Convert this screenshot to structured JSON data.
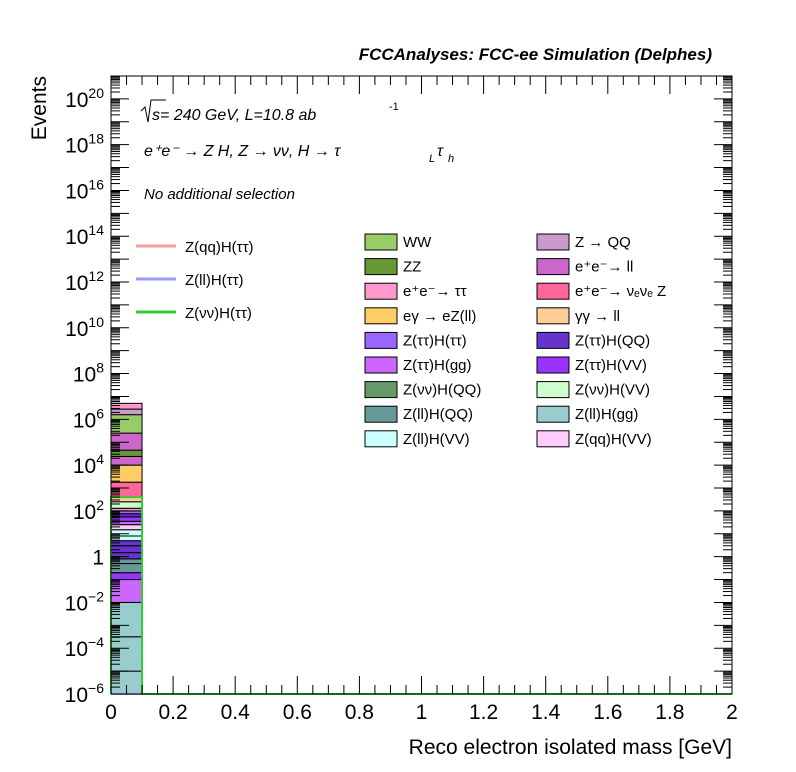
{
  "chart_data": {
    "type": "bar",
    "stacked": true,
    "log_y": true,
    "title": "FCCAnalyses: FCC-ee Simulation (Delphes)",
    "annotations": {
      "sqrt_s": "s",
      "energy_lumi": " = 240 GeV, L=10.8 ab",
      "lumi_exp": "-1",
      "process": "e⁺e⁻ → Z H, Z → νν, H → τ",
      "process_sub_L": "L",
      "process_tau": "τ",
      "process_sub_h": "h",
      "selection": "No additional selection"
    },
    "xlabel": "Reco electron isolated mass [GeV]",
    "ylabel": "Events",
    "xlim": [
      0,
      2
    ],
    "ylim": [
      1e-06,
      1e+21
    ],
    "x_ticks": [
      "0",
      "0.2",
      "0.4",
      "0.6",
      "0.8",
      "1",
      "1.2",
      "1.4",
      "1.6",
      "1.8",
      "2"
    ],
    "y_ticks": [
      {
        "value": 1e-06,
        "base": "10",
        "exp": "−6"
      },
      {
        "value": 0.0001,
        "base": "10",
        "exp": "−4"
      },
      {
        "value": 0.01,
        "base": "10",
        "exp": "−2"
      },
      {
        "value": 1,
        "base": "1",
        "exp": ""
      },
      {
        "value": 100.0,
        "base": "10",
        "exp": "2"
      },
      {
        "value": 10000.0,
        "base": "10",
        "exp": "4"
      },
      {
        "value": 1000000.0,
        "base": "10",
        "exp": "6"
      },
      {
        "value": 100000000.0,
        "base": "10",
        "exp": "8"
      },
      {
        "value": 10000000000.0,
        "base": "10",
        "exp": "10"
      },
      {
        "value": 1000000000000.0,
        "base": "10",
        "exp": "12"
      },
      {
        "value": 100000000000000.0,
        "base": "10",
        "exp": "14"
      },
      {
        "value": 1e+16,
        "base": "10",
        "exp": "16"
      },
      {
        "value": 1e+18,
        "base": "10",
        "exp": "18"
      },
      {
        "value": 1e+20,
        "base": "10",
        "exp": "20"
      }
    ],
    "bin": [
      0,
      0.1
    ],
    "signal_legend": [
      {
        "name": "Z(qq)H(ττ)",
        "color": "#f4a0a0"
      },
      {
        "name": "Z(ll)H(ττ)",
        "color": "#9999ff"
      },
      {
        "name": "Z(νν)H(ττ)",
        "color": "#33cc33"
      }
    ],
    "signal_line_top": 400,
    "background_legend": [
      {
        "name": "WW",
        "color": "#99cc66"
      },
      {
        "name": "Z → QQ",
        "color": "#cc99cc"
      },
      {
        "name": "ZZ",
        "color": "#669933"
      },
      {
        "name": "e⁺e⁻→ ll",
        "color": "#cc66cc"
      },
      {
        "name": "e⁺e⁻→ ττ",
        "color": "#ff99cc"
      },
      {
        "name": "e⁺e⁻→ νₑνₑ Z",
        "color": "#ff6699"
      },
      {
        "name": "eγ → eZ(ll)",
        "color": "#ffcc66"
      },
      {
        "name": "γγ → ll",
        "color": "#ffcc99"
      },
      {
        "name": "Z(ττ)H(ττ)",
        "color": "#9966ff"
      },
      {
        "name": "Z(ττ)H(QQ)",
        "color": "#6633cc"
      },
      {
        "name": "Z(ττ)H(gg)",
        "color": "#cc66ff"
      },
      {
        "name": "Z(ττ)H(VV)",
        "color": "#9933ff"
      },
      {
        "name": "Z(νν)H(QQ)",
        "color": "#669966"
      },
      {
        "name": "Z(νν)H(VV)",
        "color": "#ccffcc"
      },
      {
        "name": "Z(ll)H(QQ)",
        "color": "#669999"
      },
      {
        "name": "Z(ll)H(gg)",
        "color": "#99cccc"
      },
      {
        "name": "Z(ll)H(VV)",
        "color": "#ccffff"
      },
      {
        "name": "Z(qq)H(VV)",
        "color": "#ffccff"
      }
    ],
    "stack_first_bin": [
      {
        "name": "Z(ll)H(gg)",
        "color": "#99cccc",
        "top": 1e-05
      },
      {
        "name": "Z(ll)H(gg)",
        "color": "#99cccc",
        "top": 0.000316
      },
      {
        "name": "Z(ll)H(gg)",
        "color": "#99cccc",
        "top": 0.01
      },
      {
        "name": "Z(ττ)H(gg)",
        "color": "#cc66ff",
        "top": 0.1
      },
      {
        "name": "Z(ττ)H(VV)",
        "color": "#9933ff",
        "top": 0.2
      },
      {
        "name": "Z(ll)H(QQ)",
        "color": "#669999",
        "top": 0.5
      },
      {
        "name": "Z(ll)H(QQ)",
        "color": "#669999",
        "top": 0.8
      },
      {
        "name": "Z(ττ)H(QQ)",
        "color": "#6633cc",
        "top": 1.5
      },
      {
        "name": "Z(ττ)H(QQ)",
        "color": "#6633cc",
        "top": 3
      },
      {
        "name": "Z(ττ)H(QQ)",
        "color": "#6633cc",
        "top": 5
      },
      {
        "name": "Z(ll)H(VV)",
        "color": "#ccffff",
        "top": 8
      },
      {
        "name": "Z(ll)H(VV)",
        "color": "#ccffff",
        "top": 15
      },
      {
        "name": "Z(qq)H(VV)",
        "color": "#ffccff",
        "top": 25
      },
      {
        "name": "Z(ττ)H(gg)",
        "color": "#cc66ff",
        "top": 35
      },
      {
        "name": "Z(ττ)H(VV)",
        "color": "#9933ff",
        "top": 55
      },
      {
        "name": "Z(ττ)H(QQ)",
        "color": "#6633cc",
        "top": 75
      },
      {
        "name": "Z(ττ)H(ττ)",
        "color": "#9966ff",
        "top": 100
      },
      {
        "name": "e⁺e⁻→ ττ",
        "color": "#ff99cc",
        "top": 130
      },
      {
        "name": "Z(νν)H(VV)",
        "color": "#ccffcc",
        "top": 250
      },
      {
        "name": "γγ → ll",
        "color": "#ffcc99",
        "top": 400
      },
      {
        "name": "e⁺e⁻→ νₑνₑ Z",
        "color": "#ff6699",
        "top": 1800
      },
      {
        "name": "eγ → eZ(ll)",
        "color": "#ffcc66",
        "top": 10000
      },
      {
        "name": "e⁺e⁻→ ll",
        "color": "#cc66cc",
        "top": 24000
      },
      {
        "name": "ZZ",
        "color": "#669933",
        "top": 45000
      },
      {
        "name": "e⁺e⁻→ ll",
        "color": "#cc66cc",
        "top": 250000
      },
      {
        "name": "WW",
        "color": "#99cc66",
        "top": 1600000
      },
      {
        "name": "Z → QQ",
        "color": "#cc99cc",
        "top": 2800000
      },
      {
        "name": "e⁺e⁻→ ττ",
        "color": "#ff99cc",
        "top": 5000000
      }
    ]
  }
}
